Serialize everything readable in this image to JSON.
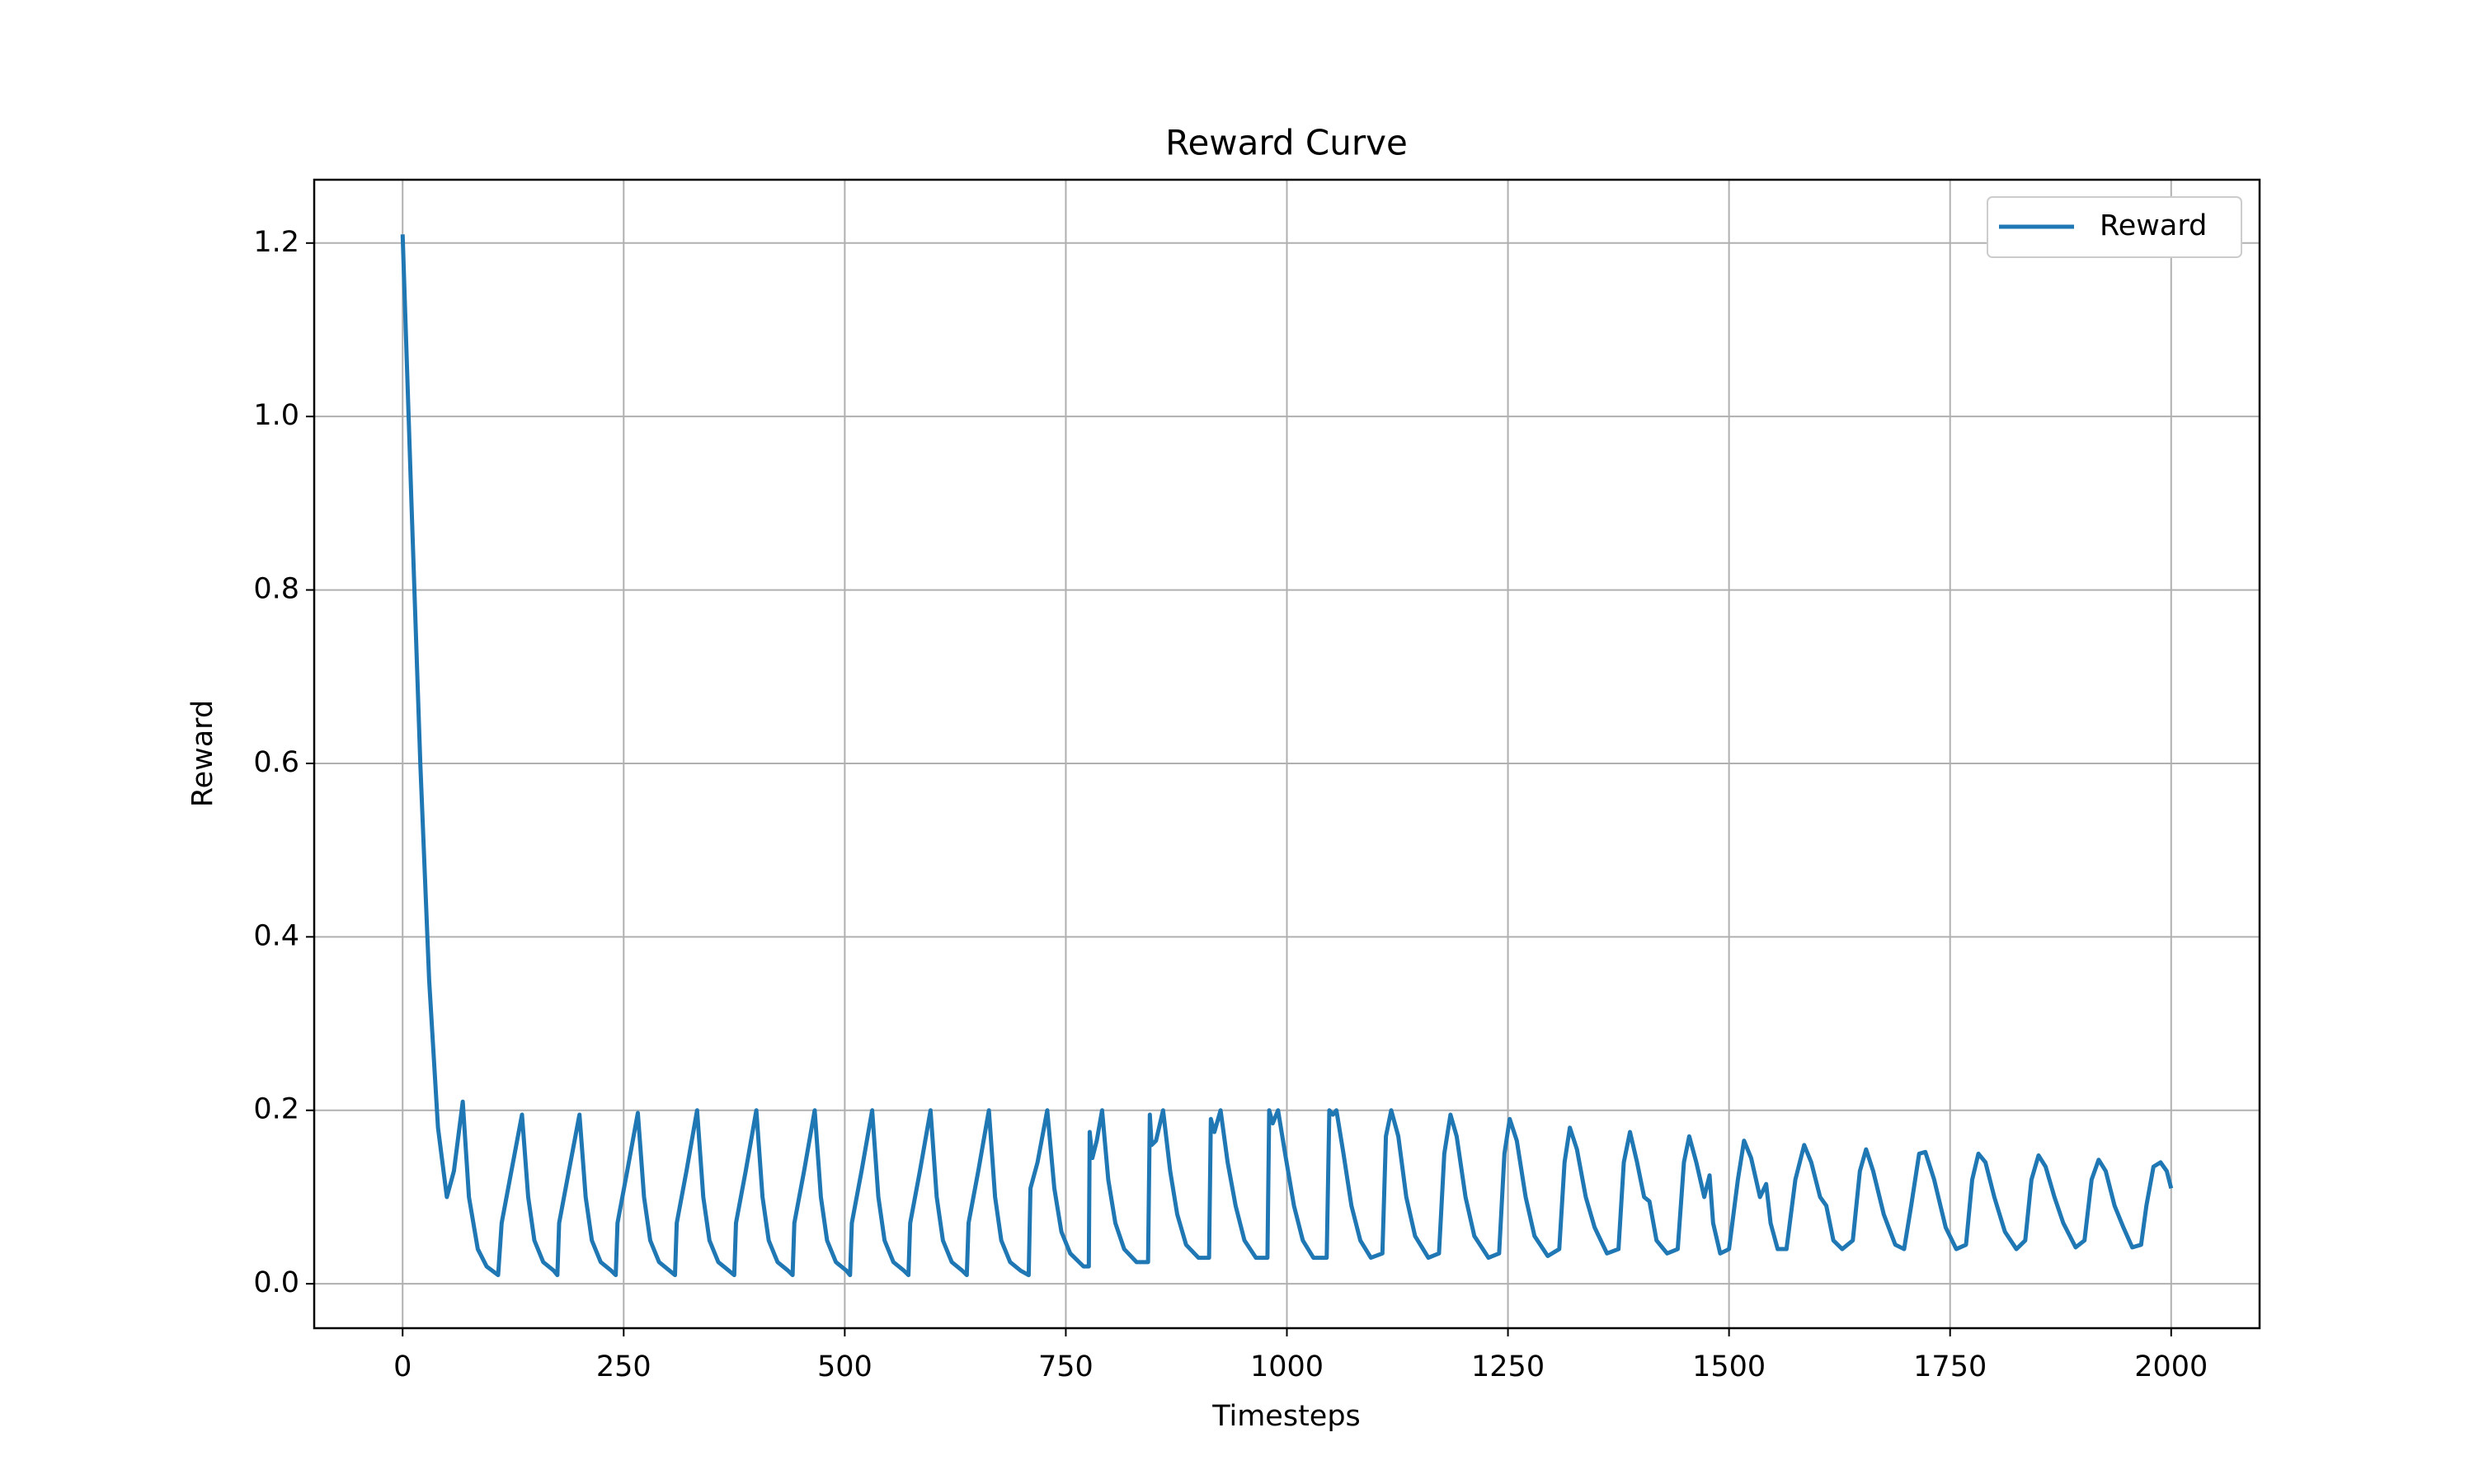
{
  "chart_data": {
    "type": "line",
    "title": "Reward Curve",
    "x_label": "Timesteps",
    "y_label": "Reward",
    "xlim": [
      -100,
      2100
    ],
    "ylim": [
      -0.0512,
      1.273
    ],
    "xticks": [
      0,
      250,
      500,
      750,
      1000,
      1250,
      1500,
      1750,
      2000
    ],
    "yticks": [
      {
        "value": 0,
        "label": "0.0"
      },
      0.2,
      0.4,
      0.6,
      0.8,
      {
        "value": 1,
        "label": "1.0"
      },
      1.2
    ],
    "grid": true,
    "legend": "upper right",
    "x": [
      0,
      10,
      20,
      30,
      40,
      50,
      58,
      68,
      75,
      85,
      95,
      108,
      112,
      123,
      135,
      142,
      149,
      159,
      171,
      175,
      177,
      188,
      200,
      207,
      214,
      224,
      236,
      241,
      243,
      254,
      266,
      273,
      280,
      290,
      302,
      308,
      310,
      321,
      333,
      340,
      347,
      357,
      369,
      375,
      377,
      388,
      400,
      407,
      414,
      424,
      436,
      441,
      443,
      454,
      466,
      473,
      480,
      490,
      502,
      506,
      508,
      519,
      531,
      538,
      545,
      555,
      567,
      572,
      574,
      585,
      597,
      604,
      611,
      621,
      633,
      638,
      640,
      651,
      663,
      670,
      677,
      687,
      699,
      708,
      710,
      718,
      729,
      737,
      745,
      755,
      770,
      776,
      777,
      780,
      785,
      791,
      798,
      806,
      816,
      830,
      843,
      845,
      847,
      852,
      860,
      868,
      876,
      886,
      900,
      912,
      914,
      918,
      925,
      933,
      942,
      952,
      965,
      978,
      980,
      984,
      990,
      998,
      1008,
      1018,
      1030,
      1045,
      1048,
      1052,
      1056,
      1064,
      1073,
      1083,
      1095,
      1108,
      1112,
      1118,
      1126,
      1135,
      1145,
      1160,
      1172,
      1178,
      1185,
      1192,
      1202,
      1212,
      1228,
      1240,
      1246,
      1252,
      1260,
      1270,
      1280,
      1295,
      1308,
      1314,
      1320,
      1328,
      1338,
      1348,
      1362,
      1375,
      1381,
      1388,
      1396,
      1404,
      1410,
      1418,
      1430,
      1442,
      1449,
      1455,
      1463,
      1472,
      1478,
      1482,
      1490,
      1500,
      1510,
      1517,
      1525,
      1535,
      1542,
      1547,
      1555,
      1565,
      1575,
      1585,
      1593,
      1603,
      1610,
      1618,
      1628,
      1640,
      1648,
      1655,
      1663,
      1675,
      1688,
      1698,
      1706,
      1715,
      1722,
      1732,
      1745,
      1757,
      1768,
      1775,
      1782,
      1790,
      1800,
      1812,
      1825,
      1835,
      1842,
      1850,
      1858,
      1868,
      1878,
      1892,
      1902,
      1910,
      1918,
      1926,
      1936,
      1946,
      1956,
      1966,
      1972,
      1980,
      1988,
      1995,
      2000
    ],
    "series": [
      {
        "name": "Reward",
        "color": "#1f77b4",
        "values": [
          1.21,
          0.9,
          0.6,
          0.35,
          0.18,
          0.1,
          0.13,
          0.21,
          0.1,
          0.04,
          0.02,
          0.01,
          0.07,
          0.13,
          0.195,
          0.1,
          0.05,
          0.025,
          0.015,
          0.01,
          0.07,
          0.13,
          0.195,
          0.1,
          0.05,
          0.025,
          0.015,
          0.01,
          0.07,
          0.13,
          0.197,
          0.1,
          0.05,
          0.025,
          0.015,
          0.01,
          0.07,
          0.13,
          0.2,
          0.1,
          0.05,
          0.025,
          0.015,
          0.01,
          0.07,
          0.13,
          0.2,
          0.1,
          0.05,
          0.025,
          0.015,
          0.01,
          0.07,
          0.13,
          0.2,
          0.1,
          0.05,
          0.025,
          0.015,
          0.01,
          0.07,
          0.13,
          0.2,
          0.1,
          0.05,
          0.025,
          0.015,
          0.01,
          0.07,
          0.13,
          0.2,
          0.1,
          0.05,
          0.025,
          0.015,
          0.01,
          0.07,
          0.13,
          0.2,
          0.1,
          0.05,
          0.025,
          0.015,
          0.01,
          0.11,
          0.14,
          0.2,
          0.11,
          0.06,
          0.035,
          0.02,
          0.02,
          0.175,
          0.145,
          0.165,
          0.2,
          0.12,
          0.07,
          0.04,
          0.025,
          0.025,
          0.195,
          0.16,
          0.165,
          0.2,
          0.13,
          0.08,
          0.045,
          0.03,
          0.03,
          0.19,
          0.175,
          0.2,
          0.14,
          0.09,
          0.05,
          0.03,
          0.03,
          0.2,
          0.185,
          0.2,
          0.15,
          0.09,
          0.05,
          0.03,
          0.03,
          0.2,
          0.195,
          0.2,
          0.15,
          0.09,
          0.05,
          0.03,
          0.035,
          0.17,
          0.2,
          0.17,
          0.1,
          0.055,
          0.03,
          0.035,
          0.15,
          0.195,
          0.17,
          0.1,
          0.055,
          0.03,
          0.035,
          0.15,
          0.19,
          0.165,
          0.1,
          0.055,
          0.032,
          0.04,
          0.14,
          0.18,
          0.155,
          0.1,
          0.065,
          0.035,
          0.04,
          0.14,
          0.175,
          0.14,
          0.1,
          0.095,
          0.05,
          0.035,
          0.04,
          0.14,
          0.17,
          0.14,
          0.1,
          0.125,
          0.07,
          0.035,
          0.04,
          0.12,
          0.165,
          0.145,
          0.1,
          0.115,
          0.07,
          0.04,
          0.04,
          0.12,
          0.16,
          0.14,
          0.1,
          0.09,
          0.05,
          0.04,
          0.05,
          0.13,
          0.155,
          0.13,
          0.08,
          0.045,
          0.04,
          0.09,
          0.15,
          0.152,
          0.12,
          0.065,
          0.04,
          0.045,
          0.12,
          0.15,
          0.14,
          0.1,
          0.06,
          0.04,
          0.05,
          0.12,
          0.148,
          0.135,
          0.1,
          0.07,
          0.042,
          0.05,
          0.12,
          0.143,
          0.13,
          0.09,
          0.065,
          0.042,
          0.045,
          0.09,
          0.135,
          0.14,
          0.13,
          0.11
        ]
      }
    ]
  }
}
